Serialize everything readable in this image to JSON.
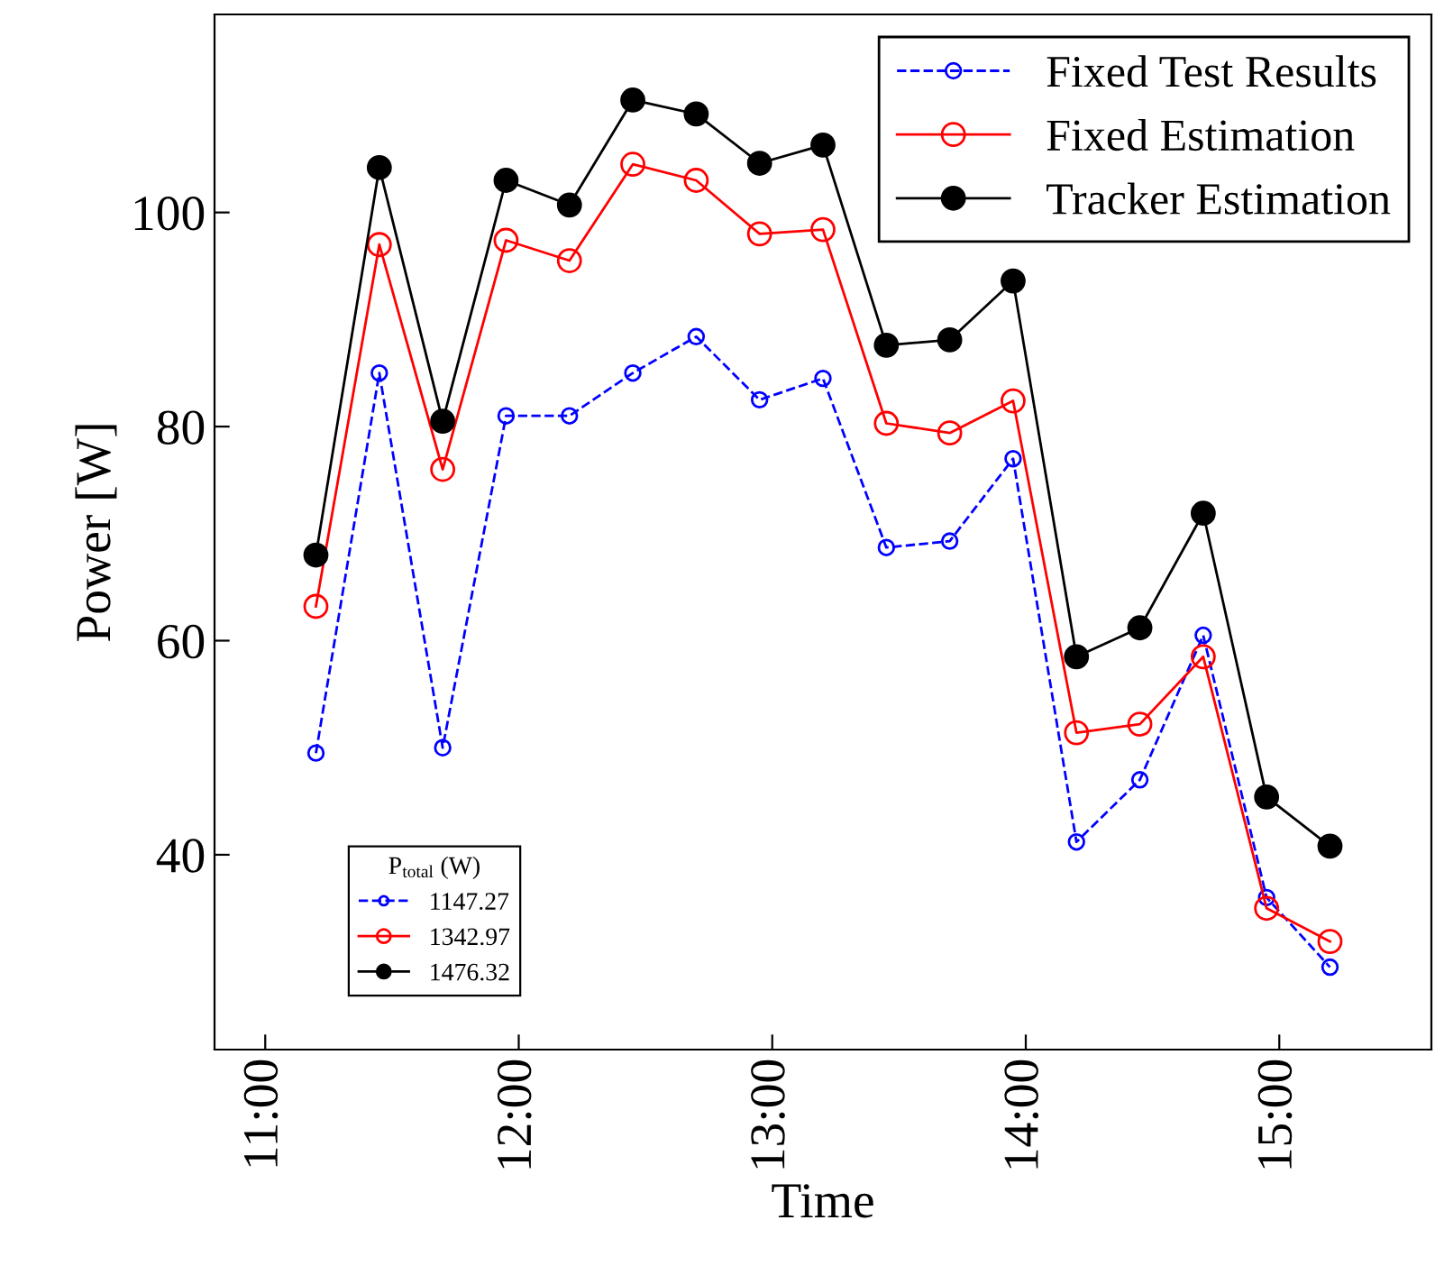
{
  "chart_data": {
    "type": "line",
    "xlabel": "Time",
    "ylabel": "Power [W]",
    "xlim": [
      10.8,
      15.6
    ],
    "ylim": [
      21.8,
      118.5
    ],
    "xticks": [
      {
        "value": 11,
        "label": "11:00"
      },
      {
        "value": 12,
        "label": "12:00"
      },
      {
        "value": 13,
        "label": "13:00"
      },
      {
        "value": 14,
        "label": "14:00"
      },
      {
        "value": 15,
        "label": "15:00"
      }
    ],
    "yticks": [
      40,
      60,
      80,
      100
    ],
    "x": [
      11.2,
      11.45,
      11.7,
      11.95,
      12.2,
      12.45,
      12.7,
      12.95,
      13.2,
      13.45,
      13.7,
      13.95,
      14.2,
      14.45,
      14.7,
      14.95,
      15.2
    ],
    "series": [
      {
        "name": "Fixed Test Results",
        "color": "#0000ff",
        "line_style": "dashed",
        "marker": "circle",
        "values": [
          49.5,
          85.0,
          50.0,
          81.0,
          81.0,
          85.0,
          88.4,
          82.5,
          84.5,
          68.7,
          69.3,
          77.0,
          41.2,
          47.0,
          60.5,
          36.0,
          29.5
        ]
      },
      {
        "name": "Fixed Estimation",
        "color": "#ff0000",
        "line_style": "solid",
        "marker": "circle",
        "values": [
          63.2,
          97.0,
          76.0,
          97.4,
          95.5,
          104.5,
          103.0,
          98.0,
          98.4,
          80.3,
          79.4,
          82.4,
          51.4,
          52.2,
          58.5,
          35.0,
          31.9
        ]
      },
      {
        "name": "Tracker Estimation",
        "color": "#000000",
        "line_style": "solid",
        "marker": "circle",
        "values": [
          68.0,
          104.2,
          80.5,
          103.0,
          100.7,
          110.5,
          109.2,
          104.6,
          106.3,
          87.6,
          88.1,
          93.6,
          58.5,
          61.2,
          71.9,
          45.4,
          40.8
        ]
      }
    ],
    "legend": "top right",
    "grid": false,
    "legend_title": "P$_{total}$ (W)",
    "annotations": [
      "1147.27",
      "1342.97",
      "1476.32"
    ]
  }
}
